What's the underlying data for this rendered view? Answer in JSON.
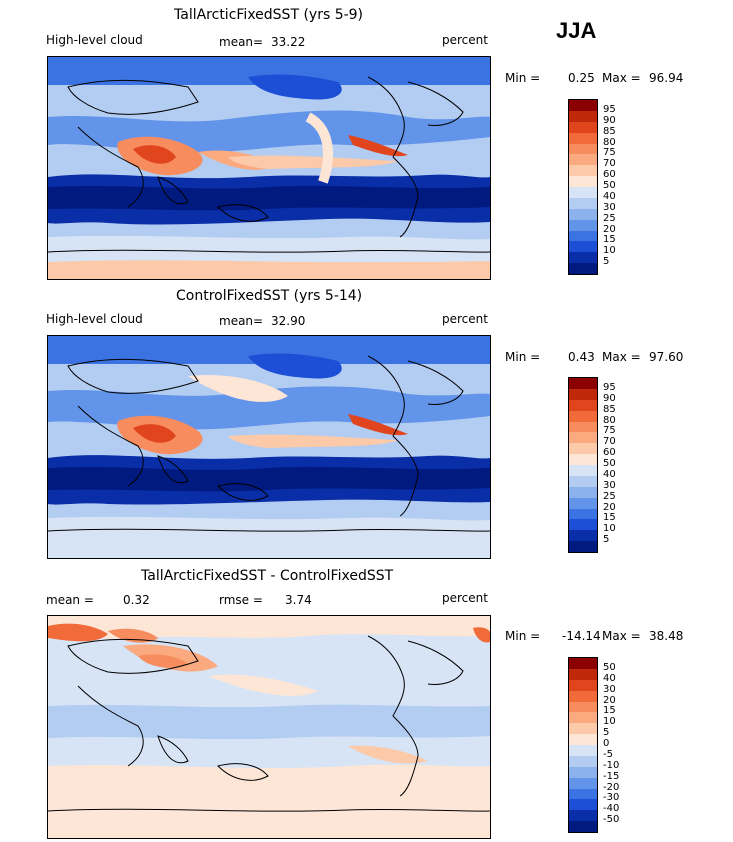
{
  "season": "JJA",
  "panels": [
    {
      "title": "TallArcticFixedSST (yrs 5-9)",
      "left_label": "High-level cloud",
      "stat1_label": "mean=",
      "stat1_value": "33.22",
      "stat2_label": "",
      "stat2_value": "",
      "units": "percent",
      "min_label": "Min =",
      "min_value": "0.25",
      "max_label": "Max =",
      "max_value": "96.94",
      "colorbar": {
        "labels": [
          "95",
          "90",
          "85",
          "80",
          "75",
          "70",
          "60",
          "50",
          "40",
          "30",
          "25",
          "20",
          "15",
          "10",
          "5"
        ],
        "colors": [
          "#8b0000",
          "#c0280a",
          "#e0451d",
          "#f06a3a",
          "#f78c5e",
          "#fbaa80",
          "#fcc9a9",
          "#fde6d6",
          "#d6e4f5",
          "#b3cdf2",
          "#8cb2ee",
          "#6294ea",
          "#3c73e2",
          "#1c4fd6",
          "#0a2ea8",
          "#001a80"
        ]
      }
    },
    {
      "title": "ControlFixedSST (yrs 5-14)",
      "left_label": "High-level cloud",
      "stat1_label": "mean=",
      "stat1_value": "32.90",
      "stat2_label": "",
      "stat2_value": "",
      "units": "percent",
      "min_label": "Min =",
      "min_value": "0.43",
      "max_label": "Max =",
      "max_value": "97.60",
      "colorbar": {
        "labels": [
          "95",
          "90",
          "85",
          "80",
          "75",
          "70",
          "60",
          "50",
          "40",
          "30",
          "25",
          "20",
          "15",
          "10",
          "5"
        ],
        "colors": [
          "#8b0000",
          "#c0280a",
          "#e0451d",
          "#f06a3a",
          "#f78c5e",
          "#fbaa80",
          "#fcc9a9",
          "#fde6d6",
          "#d6e4f5",
          "#b3cdf2",
          "#8cb2ee",
          "#6294ea",
          "#3c73e2",
          "#1c4fd6",
          "#0a2ea8",
          "#001a80"
        ]
      }
    },
    {
      "title": "TallArcticFixedSST - ControlFixedSST",
      "left_label": "",
      "stat1_label": "mean =",
      "stat1_value": "0.32",
      "stat2_label": "rmse =",
      "stat2_value": "3.74",
      "units": "percent",
      "min_label": "Min =",
      "min_value": "-14.14",
      "max_label": "Max =",
      "max_value": "38.48",
      "colorbar": {
        "labels": [
          "50",
          "40",
          "30",
          "20",
          "15",
          "10",
          "5",
          "0",
          "-5",
          "-10",
          "-15",
          "-20",
          "-30",
          "-40",
          "-50"
        ],
        "colors": [
          "#8b0000",
          "#c0280a",
          "#e0451d",
          "#f06a3a",
          "#f78c5e",
          "#fbaa80",
          "#fcc9a9",
          "#fde6d6",
          "#d6e4f5",
          "#b3cdf2",
          "#8cb2ee",
          "#6294ea",
          "#3c73e2",
          "#1c4fd6",
          "#0a2ea8",
          "#001a80"
        ]
      }
    }
  ]
}
